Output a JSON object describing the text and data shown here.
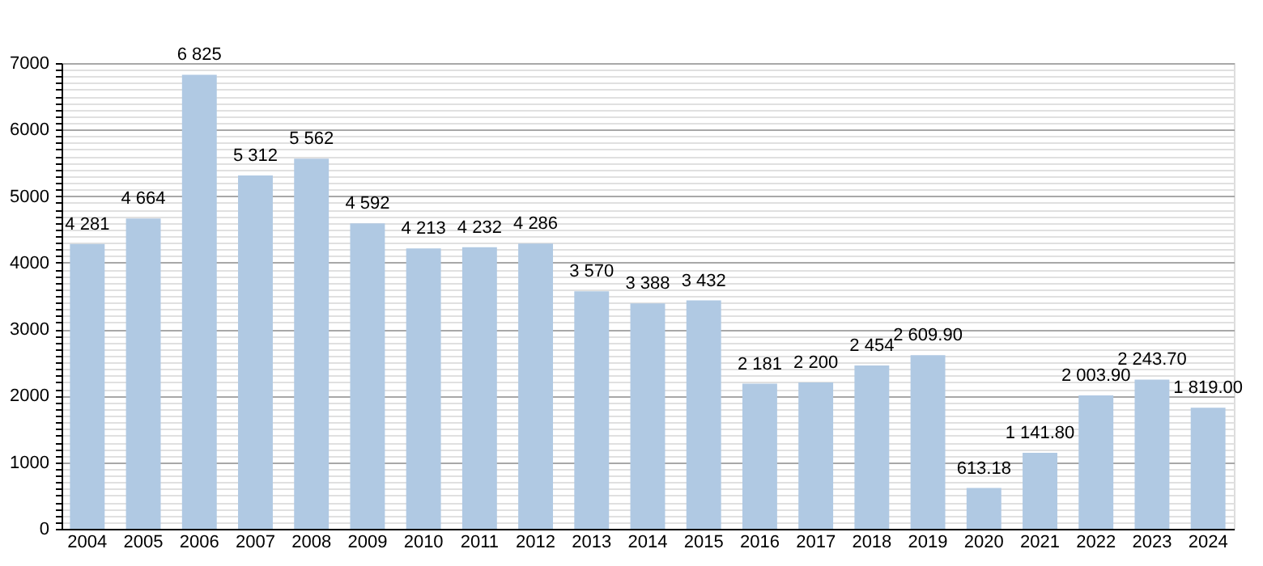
{
  "chart_data": {
    "type": "bar",
    "categories": [
      "2004",
      "2005",
      "2006",
      "2007",
      "2008",
      "2009",
      "2010",
      "2011",
      "2012",
      "2013",
      "2014",
      "2015",
      "2016",
      "2017",
      "2018",
      "2019",
      "2020",
      "2021",
      "2022",
      "2023",
      "2024"
    ],
    "values": [
      4281,
      4664,
      6825,
      5312,
      5562,
      4592,
      4213,
      4232,
      4286,
      3570,
      3388,
      3432,
      2181,
      2200,
      2454,
      2609.9,
      613.18,
      1141.8,
      2003.9,
      2243.7,
      1819
    ],
    "value_labels": [
      "4 281",
      "4 664",
      "6 825",
      "5 312",
      "5 562",
      "4 592",
      "4 213",
      "4 232",
      "4 286",
      "3 570",
      "3 388",
      "3 432",
      "2 181",
      "2 200",
      "2 454",
      "2 609.90",
      "613.18",
      "1 141.80",
      "2 003.90",
      "2 243.70",
      "1 819.00"
    ],
    "color": "#b0c9e3",
    "ylim": [
      0,
      7000
    ],
    "yticks": [
      0,
      {
        "value": 100,
        "label": null
      },
      {
        "value": 200,
        "label": null
      },
      {
        "value": 300,
        "label": null
      },
      {
        "value": 400,
        "label": null
      },
      {
        "value": 500,
        "label": null
      },
      {
        "value": 600,
        "label": null
      },
      {
        "value": 700,
        "label": null
      },
      {
        "value": 800,
        "label": null
      },
      {
        "value": 900,
        "label": null
      },
      1000,
      {
        "value": 1100,
        "label": null
      },
      {
        "value": 1200,
        "label": null
      },
      {
        "value": 1300,
        "label": null
      },
      {
        "value": 1400,
        "label": null
      },
      {
        "value": 1500,
        "label": null
      },
      {
        "value": 1600,
        "label": null
      },
      {
        "value": 1700,
        "label": null
      },
      {
        "value": 1800,
        "label": null
      },
      {
        "value": 1900,
        "label": null
      },
      2000,
      {
        "value": 2100,
        "label": null
      },
      {
        "value": 2200,
        "label": null
      },
      {
        "value": 2300,
        "label": null
      },
      {
        "value": 2400,
        "label": null
      },
      {
        "value": 2500,
        "label": null
      },
      {
        "value": 2600,
        "label": null
      },
      {
        "value": 2700,
        "label": null
      },
      {
        "value": 2800,
        "label": null
      },
      {
        "value": 2900,
        "label": null
      },
      3000,
      {
        "value": 3100,
        "label": null
      },
      {
        "value": 3200,
        "label": null
      },
      {
        "value": 3300,
        "label": null
      },
      {
        "value": 3400,
        "label": null
      },
      {
        "value": 3500,
        "label": null
      },
      {
        "value": 3600,
        "label": null
      },
      {
        "value": 3700,
        "label": null
      },
      {
        "value": 3800,
        "label": null
      },
      {
        "value": 3900,
        "label": null
      },
      4000,
      {
        "value": 4100,
        "label": null
      },
      {
        "value": 4200,
        "label": null
      },
      {
        "value": 4300,
        "label": null
      },
      {
        "value": 4400,
        "label": null
      },
      {
        "value": 4500,
        "label": null
      },
      {
        "value": 4600,
        "label": null
      },
      {
        "value": 4700,
        "label": null
      },
      {
        "value": 4800,
        "label": null
      },
      {
        "value": 4900,
        "label": null
      },
      5000,
      {
        "value": 5100,
        "label": null
      },
      {
        "value": 5200,
        "label": null
      },
      {
        "value": 5300,
        "label": null
      },
      {
        "value": 5400,
        "label": null
      },
      {
        "value": 5500,
        "label": null
      },
      {
        "value": 5600,
        "label": null
      },
      {
        "value": 5700,
        "label": null
      },
      {
        "value": 5800,
        "label": null
      },
      {
        "value": 5900,
        "label": null
      },
      6000,
      {
        "value": 6100,
        "label": null
      },
      {
        "value": 6200,
        "label": null
      },
      {
        "value": 6300,
        "label": null
      },
      {
        "value": 6400,
        "label": null
      },
      {
        "value": 6500,
        "label": null
      },
      {
        "value": 6600,
        "label": null
      },
      {
        "value": 6700,
        "label": null
      },
      {
        "value": 6800,
        "label": null
      },
      {
        "value": 6900,
        "label": null
      },
      7000
    ],
    "grid": true
  }
}
